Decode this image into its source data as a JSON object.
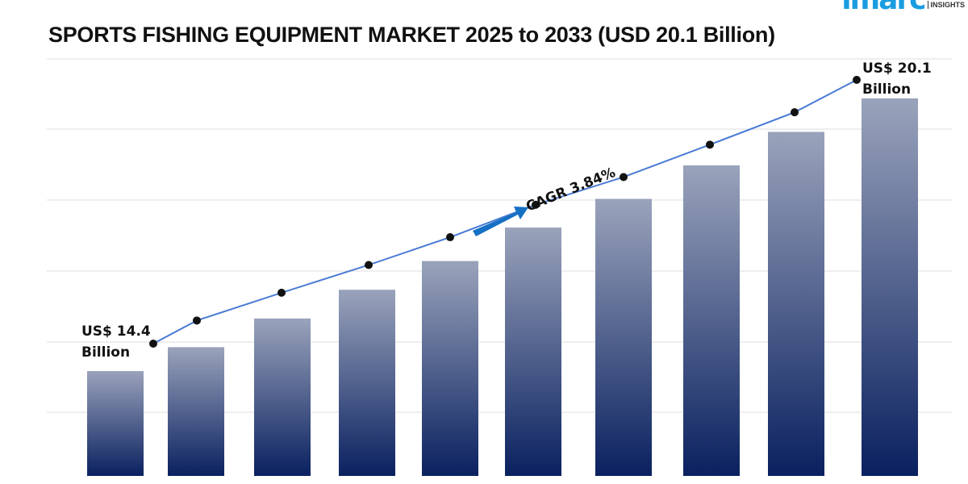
{
  "logo": {
    "text": "imarc",
    "sub": "INSIGHTS"
  },
  "chart_data": {
    "type": "bar",
    "title": "SPORTS FISHING EQUIPMENT MARKET 2025 to 2033 (USD 20.1 Billion)",
    "values": [
      14.4,
      14.9,
      15.5,
      16.1,
      16.7,
      17.4,
      18.0,
      18.7,
      19.4,
      20.1
    ],
    "overlay_line": true,
    "grid": true,
    "annotations": {
      "start_line1": "US$ 14.4",
      "start_line2": "Billion",
      "end_line1": "US$ 20.1",
      "end_line2": "Billion",
      "cagr": "CAGR 3.84%"
    },
    "colors": {
      "bar_top": "#9aa3bb",
      "bar_bottom": "#0a2160",
      "line": "#4a7bd4",
      "arrow": "#1670c4"
    }
  }
}
